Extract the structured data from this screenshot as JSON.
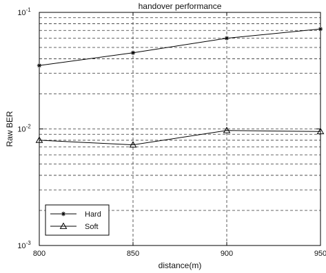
{
  "chart_data": {
    "type": "line",
    "title": "handover performance",
    "xlabel": "distance(m)",
    "ylabel": "Raw BER",
    "x": [
      800,
      850,
      900,
      950
    ],
    "xlim": [
      800,
      950
    ],
    "ylim": [
      0.001,
      0.1
    ],
    "yscale": "log",
    "grid": "dashed",
    "legend_position": "bottom-left",
    "x_tick_labels": [
      "800",
      "850",
      "900",
      "950"
    ],
    "y_tick_labels": [
      {
        "base": "10",
        "exp": "-3",
        "value": 0.001
      },
      {
        "base": "10",
        "exp": "-2",
        "value": 0.01
      },
      {
        "base": "10",
        "exp": "-1",
        "value": 0.1
      }
    ],
    "series": [
      {
        "name": "Hard",
        "marker": "star",
        "values": [
          0.035,
          0.045,
          0.06,
          0.072
        ]
      },
      {
        "name": "Soft",
        "marker": "triangle",
        "values": [
          0.008,
          0.0073,
          0.0097,
          0.0095
        ]
      }
    ]
  }
}
